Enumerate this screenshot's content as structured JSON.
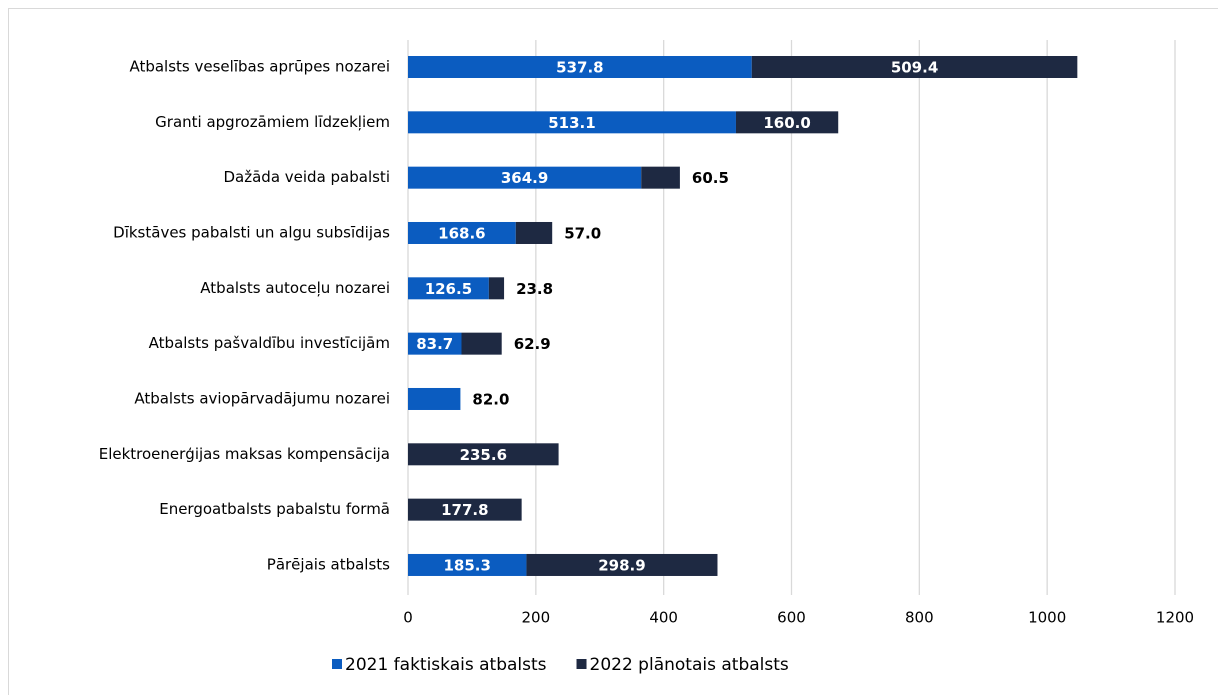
{
  "chart_data": {
    "type": "stacked-barh",
    "categories": [
      "Atbalsts veselības aprūpes nozarei",
      "Granti apgrozāmiem līdzekļiem",
      "Dažāda veida pabalsti",
      "Dīkstāves pabalsti un algu subsīdijas",
      "Atbalsts autoceļu nozarei",
      "Atbalsts pašvaldību investīcijām",
      "Atbalsts aviopārvadājumu nozarei",
      "Elektroenerģijas maksas kompensācija",
      "Energoatbalsts pabalstu formā",
      "Pārējais atbalsts"
    ],
    "series": [
      {
        "name": "2021 faktiskais atbalsts",
        "color": "#0b5cc0",
        "values": [
          537.8,
          513.1,
          364.9,
          168.6,
          126.5,
          83.7,
          82.0,
          null,
          null,
          185.3
        ],
        "value_labels": [
          "537.8",
          "513.1",
          "364.9",
          "168.6",
          "126.5",
          "83.7",
          "82.0",
          null,
          null,
          "185.3"
        ]
      },
      {
        "name": "2022 plānotais atbalsts",
        "color": "#1e2942",
        "values": [
          509.4,
          160.0,
          60.5,
          57.0,
          23.8,
          62.9,
          null,
          235.6,
          177.8,
          298.9
        ],
        "value_labels": [
          "509.4",
          "160.0",
          "60.5",
          "57.0",
          "23.8",
          "62.9",
          null,
          "235.6",
          "177.8",
          "298.9"
        ]
      }
    ],
    "xlim": [
      0,
      1200
    ],
    "xticks": [
      0,
      200,
      400,
      600,
      800,
      1000,
      1200
    ],
    "grid": true,
    "legend": "bottom"
  }
}
